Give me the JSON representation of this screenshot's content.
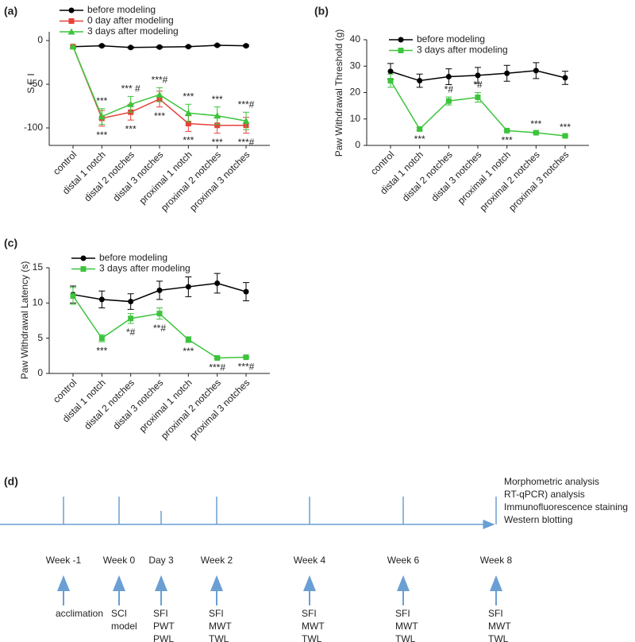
{
  "chart_data": [
    {
      "type": "line",
      "panel": "(a)",
      "y_label": "S F I",
      "categories": [
        "control",
        "distal 1 notch",
        "distal 2 notches",
        "distal 3 notches",
        "proximal 1 notch",
        "proximal 2 notches",
        "proximal 3 notches"
      ],
      "ylim": [
        -120,
        10
      ],
      "yticks": [
        0,
        -50,
        -100
      ],
      "series": [
        {
          "name": "before modeling",
          "color": "#000000",
          "marker": "circle",
          "values": [
            -7,
            -6,
            -8,
            -7.5,
            -7,
            -5.5,
            -6
          ],
          "errors": [
            1,
            1,
            1,
            1,
            1,
            1,
            1
          ],
          "annotations": [
            null,
            null,
            null,
            null,
            null,
            null,
            null
          ]
        },
        {
          "name": "0 day after modeling",
          "color": "#e8403a",
          "marker": "square",
          "values": [
            -7,
            -89,
            -82,
            -67,
            -95,
            -97,
            -97
          ],
          "errors": [
            1,
            9,
            9,
            9,
            9,
            9,
            9
          ],
          "annotations": [
            null,
            "***",
            "***",
            "***",
            "***",
            "***",
            "***#"
          ]
        },
        {
          "name": "3 days after modeling",
          "color": "#3cc43c",
          "marker": "triangle",
          "values": [
            -7,
            -87,
            -73,
            -62,
            -83,
            -86,
            -92
          ],
          "errors": [
            1,
            9,
            9,
            8,
            10,
            10,
            10
          ],
          "annotations": [
            null,
            "***",
            "*** #",
            "***#",
            "***",
            "***",
            "***#"
          ]
        }
      ]
    },
    {
      "type": "line",
      "panel": "(b)",
      "y_label": "Paw Withdrawal Threshold (g)",
      "categories": [
        "control",
        "distal 1 notch",
        "distal 2 notches",
        "distal 3 notches",
        "proximal 1 notch",
        "proximal 2 notches",
        "proximal 3 notches"
      ],
      "ylim": [
        0,
        40
      ],
      "yticks": [
        0,
        10,
        20,
        30,
        40
      ],
      "series": [
        {
          "name": "before modeling",
          "color": "#000000",
          "marker": "circle",
          "values": [
            28,
            24.5,
            26,
            26.5,
            27.3,
            28.3,
            25.6
          ],
          "errors": [
            3,
            2.5,
            3,
            3,
            3,
            3,
            2.5
          ],
          "annotations": [
            null,
            null,
            null,
            null,
            null,
            null,
            null
          ]
        },
        {
          "name": "3 days after modeling",
          "color": "#3cc43c",
          "marker": "square",
          "values": [
            24.5,
            6.2,
            16.8,
            18.2,
            5.6,
            4.8,
            3.6
          ],
          "errors": [
            2.5,
            0.5,
            1.5,
            1.8,
            0.3,
            0.3,
            0.3
          ],
          "annotations": [
            null,
            "***",
            "*#",
            "*#",
            "***",
            "***",
            "***"
          ]
        }
      ]
    },
    {
      "type": "line",
      "panel": "(c)",
      "y_label": "Paw Withdrawal Latency (s)",
      "categories": [
        "control",
        "distal 1 notch",
        "distal 2 notches",
        "distal 3 notches",
        "proximal 1 notch",
        "proximal 2 notches",
        "proximal 3 notches"
      ],
      "ylim": [
        0,
        15
      ],
      "yticks": [
        0,
        5,
        10,
        15
      ],
      "series": [
        {
          "name": "before modeling",
          "color": "#000000",
          "marker": "circle",
          "values": [
            11.2,
            10.5,
            10.2,
            11.8,
            12.3,
            12.8,
            11.6
          ],
          "errors": [
            1.2,
            1.2,
            1.1,
            1.3,
            1.4,
            1.4,
            1.3
          ],
          "annotations": [
            null,
            null,
            null,
            null,
            null,
            null,
            null
          ]
        },
        {
          "name": "3 days after modeling",
          "color": "#3cc43c",
          "marker": "square",
          "values": [
            11,
            5,
            7.8,
            8.5,
            4.8,
            2.2,
            2.3
          ],
          "errors": [
            1.2,
            0.5,
            0.7,
            0.8,
            0.4,
            0.1,
            0.1
          ],
          "annotations": [
            null,
            "***",
            "*#",
            "**#",
            "***",
            "***#",
            "***#"
          ]
        }
      ]
    }
  ],
  "timeline": {
    "panel": "(d)",
    "points": [
      {
        "label": "Week -1",
        "tasks": [
          "acclimation"
        ]
      },
      {
        "label": "Week 0",
        "tasks": [
          "SCI",
          "model"
        ]
      },
      {
        "label": "Day 3",
        "tasks": [
          "SFI",
          "PWT",
          "PWL"
        ]
      },
      {
        "label": "Week 2",
        "tasks": [
          "SFI",
          "MWT",
          "TWL"
        ]
      },
      {
        "label": "Week 4",
        "tasks": [
          "SFI",
          "MWT",
          "TWL"
        ]
      },
      {
        "label": "Week 6",
        "tasks": [
          "SFI",
          "MWT",
          "TWL"
        ]
      },
      {
        "label": "Week 8",
        "tasks": [
          "SFI",
          "MWT",
          "TWL"
        ]
      }
    ],
    "analyses": [
      "Morphometric analysis",
      "RT-qPCR) analysis",
      "Immunofluorescence staining",
      "Western blotting"
    ]
  }
}
